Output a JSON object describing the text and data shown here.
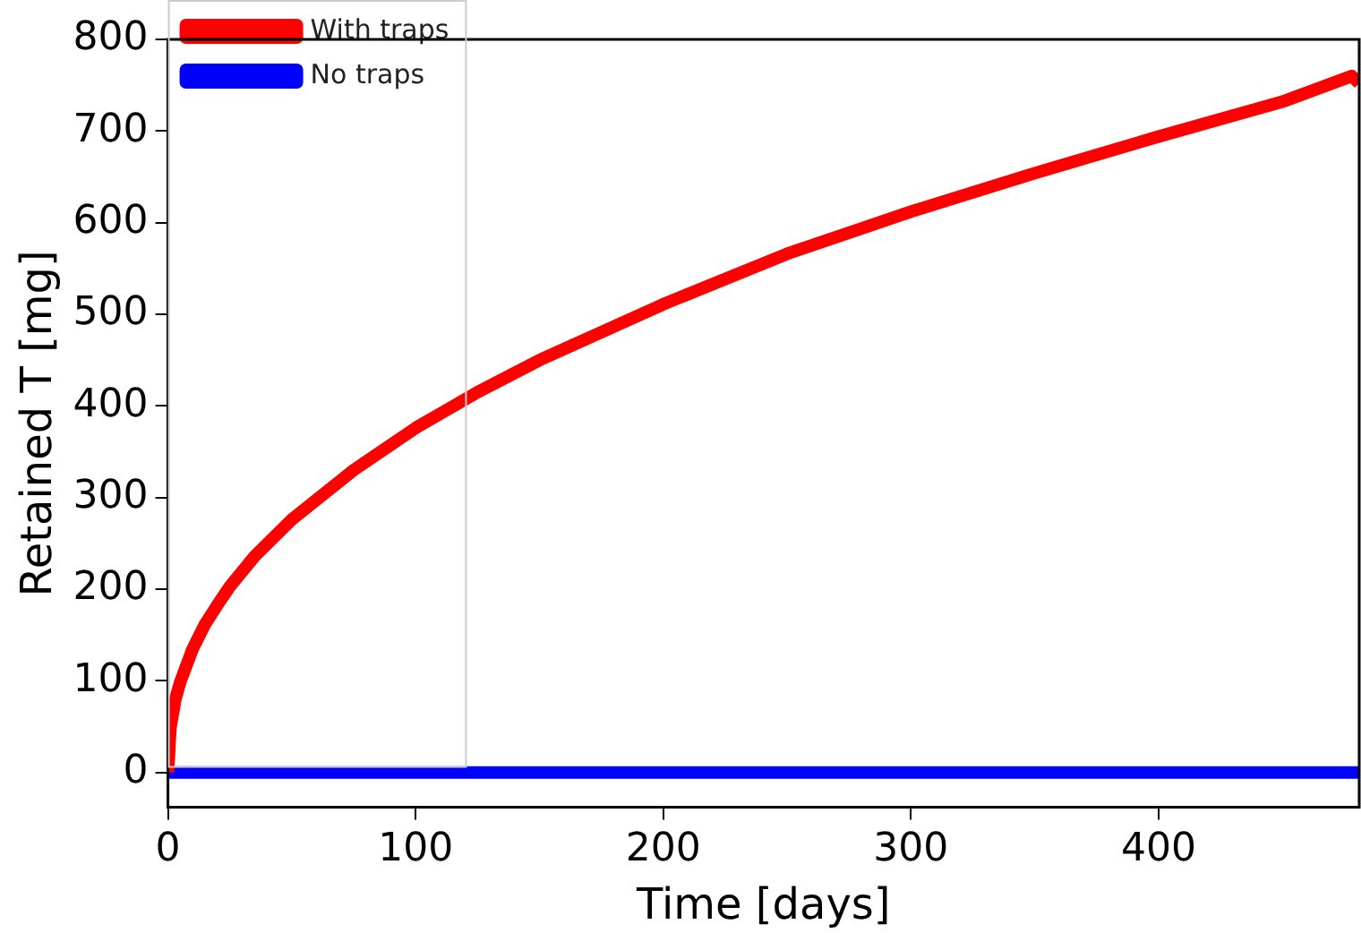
{
  "chart_data": {
    "type": "line",
    "xlabel": "Time [days]",
    "ylabel": "Retained T [mg]",
    "xlim": [
      0,
      481
    ],
    "xticks": [
      0,
      100,
      200,
      300,
      400
    ],
    "ylim": [
      -38,
      800
    ],
    "yticks": [
      0,
      100,
      200,
      300,
      400,
      500,
      600,
      700,
      800
    ],
    "grid": false,
    "legend": "top left",
    "marker": "none",
    "line_style": "solid",
    "series": [
      {
        "name": "With traps",
        "color": "#ff0000",
        "x": [
          0,
          1,
          3,
          5,
          10,
          15,
          20,
          25,
          35,
          50,
          75,
          100,
          125,
          150,
          200,
          250,
          300,
          350,
          400,
          450,
          478,
          481
        ],
        "values": [
          0,
          49,
          80,
          99,
          135,
          162,
          183,
          203,
          236,
          276,
          330,
          376,
          415,
          450,
          511,
          566,
          612,
          654,
          694,
          732,
          760,
          752
        ]
      },
      {
        "name": "No traps",
        "color": "#0000ff",
        "x": [
          0,
          481
        ],
        "values": [
          0,
          0
        ]
      }
    ]
  }
}
